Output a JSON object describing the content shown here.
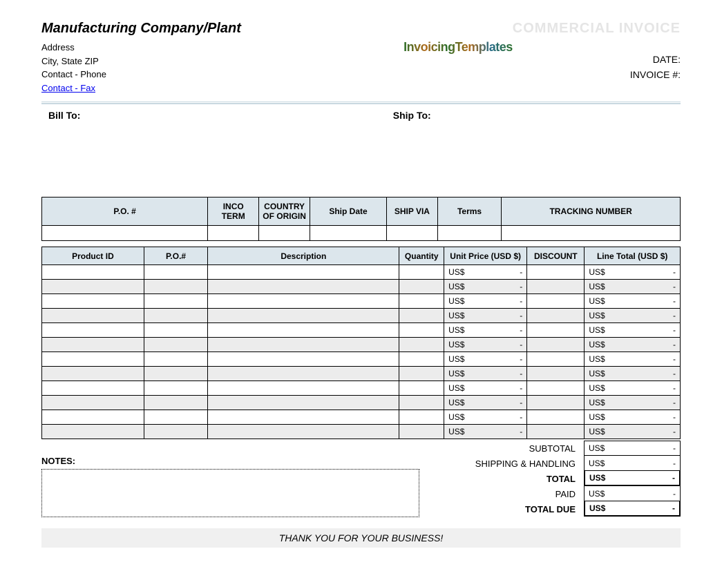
{
  "header": {
    "company_name": "Manufacturing Company/Plant",
    "address": "Address",
    "city_state_zip": "City, State ZIP",
    "contact_phone": "Contact - Phone",
    "contact_fax": "Contact - Fax",
    "logo_text": "InvoicingTemplates",
    "invoice_title": "COMMERCIAL INVOICE",
    "date_label": "DATE:",
    "invoice_num_label": "INVOICE #:",
    "date_value": "",
    "invoice_num_value": ""
  },
  "address_section": {
    "bill_to_label": "Bill To:",
    "ship_to_label": "Ship To:"
  },
  "meta_table": {
    "headers": [
      "P.O. #",
      "INCO TERM",
      "COUNTRY OF ORIGIN",
      "Ship Date",
      "SHIP VIA",
      "Terms",
      "TRACKING NUMBER"
    ],
    "col_widths": [
      "26%",
      "8%",
      "8%",
      "12%",
      "8%",
      "10%",
      "28%"
    ],
    "row": [
      "",
      "",
      "",
      "",
      "",
      "",
      ""
    ]
  },
  "items_table": {
    "headers": [
      "Product ID",
      "P.O.#",
      "Description",
      "Quantity",
      "Unit Price (USD $)",
      "DISCOUNT",
      "Line Total (USD $)"
    ],
    "col_widths": [
      "16%",
      "10%",
      "30%",
      "7%",
      "13%",
      "9%",
      "15%"
    ],
    "currency": "US$",
    "dash": "-",
    "rows": 12,
    "header_bg": "#dce6ec",
    "alt_row_bg": "#ececec",
    "border_color": "#000000"
  },
  "summary": {
    "notes_label": "NOTES:",
    "lines": [
      {
        "label": "SUBTOTAL",
        "cur": "US$",
        "dash": "-",
        "bold": false
      },
      {
        "label": "SHIPPING & HANDLING",
        "cur": "US$",
        "dash": "-",
        "bold": false
      },
      {
        "label": "TOTAL",
        "cur": "US$",
        "dash": "-",
        "bold": true
      },
      {
        "label": "PAID",
        "cur": "US$",
        "dash": "-",
        "bold": false
      },
      {
        "label": "TOTAL DUE",
        "cur": "US$",
        "dash": "-",
        "bold": true
      }
    ]
  },
  "footer": {
    "thanks": "THANK YOU FOR YOUR BUSINESS!"
  },
  "colors": {
    "header_cell_bg": "#dce6ec",
    "alt_row_bg": "#ececec",
    "rule_color": "#c8d8e0",
    "invoice_title_color": "#e5e5e5",
    "link_color": "#0000ee",
    "thanks_bg": "#f0f0f0",
    "background": "#ffffff"
  }
}
